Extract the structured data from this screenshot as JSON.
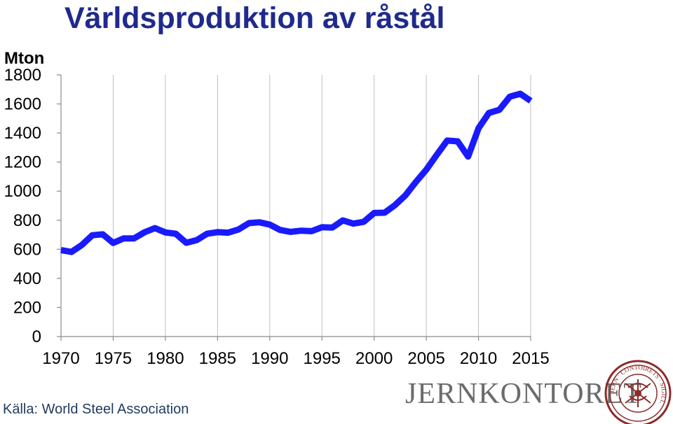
{
  "title": "Världsproduktion av råstål",
  "source": "Källa: World Steel Association",
  "logo_text": "JERNKONTORET",
  "seal_text": "JERN · CONTOIRETS · SIGILL",
  "colors": {
    "title": "#1f2a8c",
    "line": "#1a1aff",
    "grid": "#bfbfbf",
    "seal": "#8c2b2b",
    "logo": "#6b6b6b"
  },
  "chart_data": {
    "type": "line",
    "title": "Världsproduktion av råstål",
    "ylabel": "Mton",
    "xlabel": "",
    "xlim": [
      1970,
      2015
    ],
    "ylim": [
      0,
      1800
    ],
    "x_ticks": [
      1970,
      1975,
      1980,
      1985,
      1990,
      1995,
      2000,
      2005,
      2010,
      2015
    ],
    "y_ticks": [
      0,
      200,
      400,
      600,
      800,
      1000,
      1200,
      1400,
      1600,
      1800
    ],
    "grid": "vertical",
    "x": [
      1970,
      1971,
      1972,
      1973,
      1974,
      1975,
      1976,
      1977,
      1978,
      1979,
      1980,
      1981,
      1982,
      1983,
      1984,
      1985,
      1986,
      1987,
      1988,
      1989,
      1990,
      1991,
      1992,
      1993,
      1994,
      1995,
      1996,
      1997,
      1998,
      1999,
      2000,
      2001,
      2002,
      2003,
      2004,
      2005,
      2006,
      2007,
      2008,
      2009,
      2010,
      2011,
      2012,
      2013,
      2014,
      2015
    ],
    "series": [
      {
        "values": [
          595,
          582,
          630,
          697,
          703,
          644,
          675,
          675,
          717,
          746,
          716,
          707,
          645,
          663,
          707,
          718,
          714,
          736,
          780,
          786,
          770,
          733,
          720,
          728,
          725,
          752,
          750,
          799,
          777,
          789,
          850,
          852,
          904,
          971,
          1063,
          1148,
          1250,
          1348,
          1343,
          1238,
          1433,
          1538,
          1560,
          1650,
          1670,
          1621
        ]
      }
    ]
  }
}
